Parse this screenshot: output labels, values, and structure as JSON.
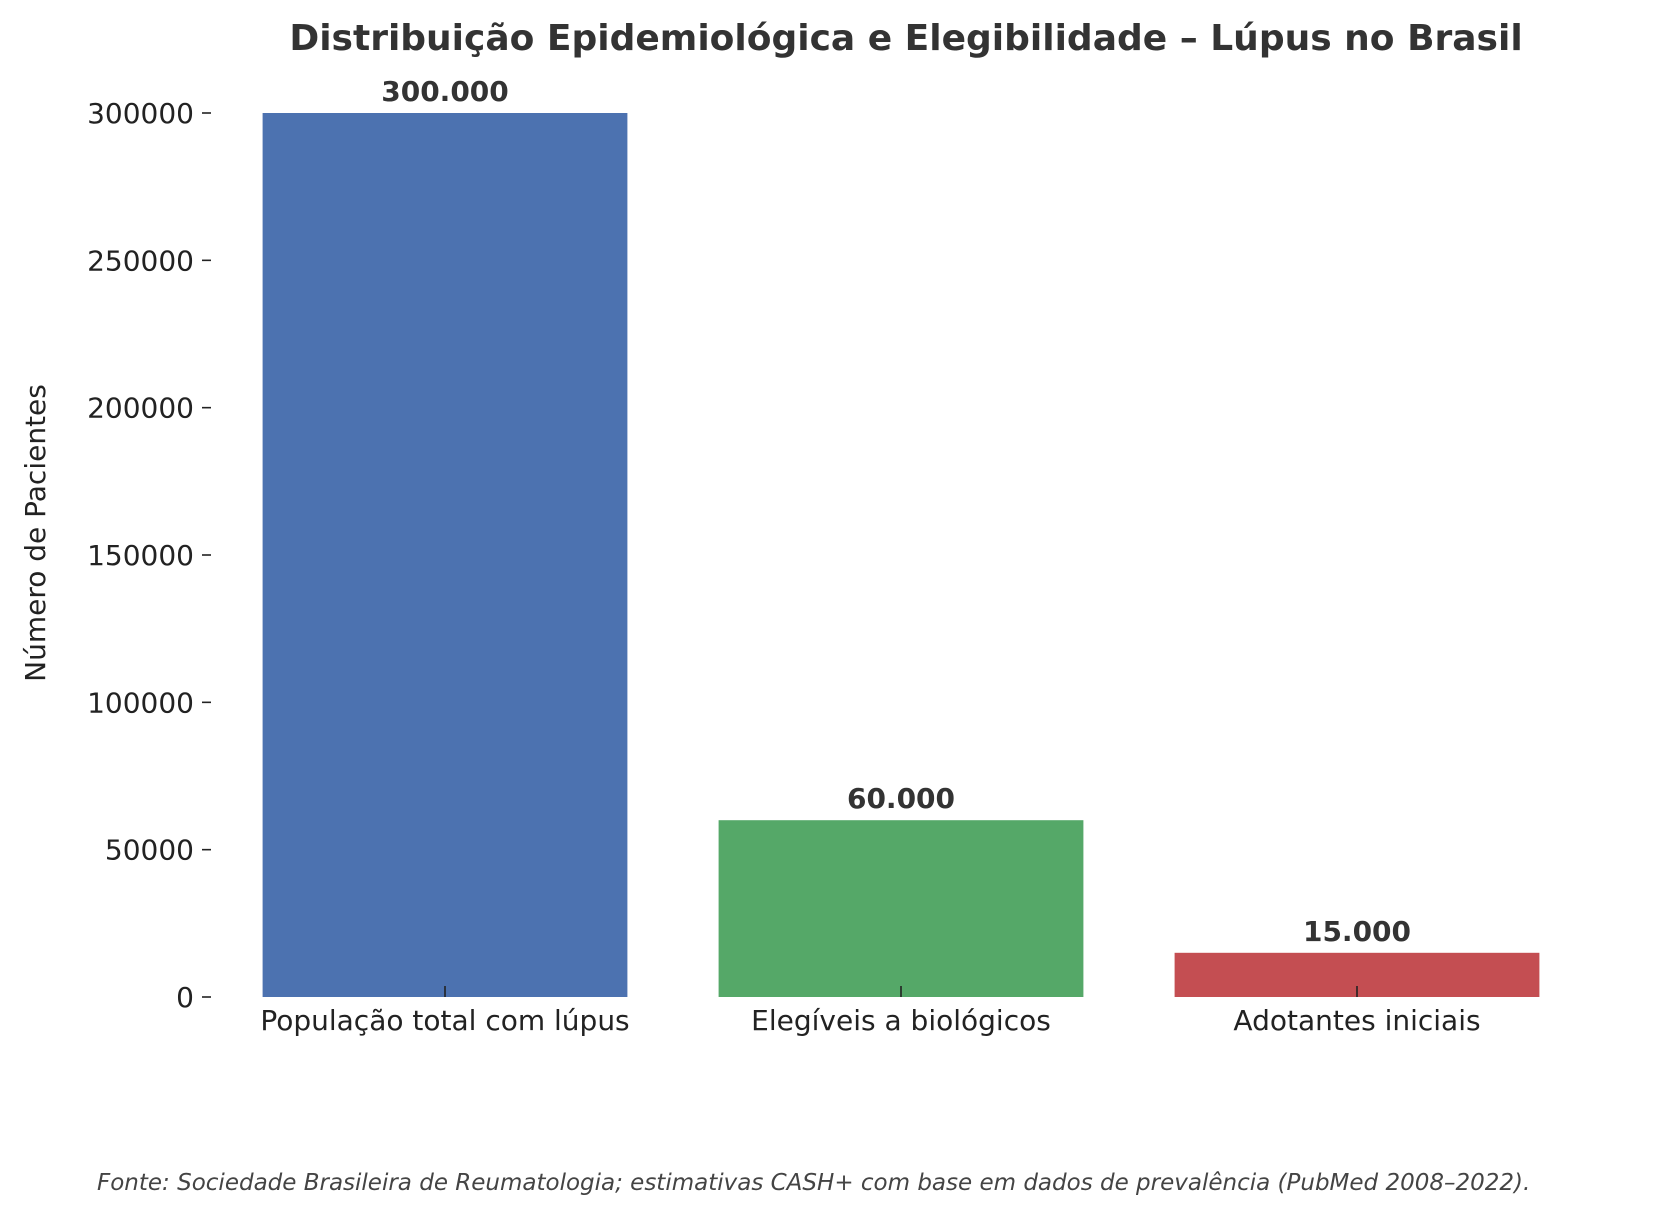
{
  "chart_data": {
    "type": "bar",
    "title": "Distribuição Epidemiológica e Elegibilidade – Lúpus no Brasil",
    "xlabel": "",
    "ylabel": "Número de Pacientes",
    "categories": [
      "População total com lúpus",
      "Elegíveis a biológicos",
      "Adotantes iniciais"
    ],
    "values": [
      300000,
      60000,
      15000
    ],
    "data_labels": [
      "300.000",
      "60.000",
      "15.000"
    ],
    "colors": [
      "#4c72b0",
      "#55a868",
      "#c44e52"
    ],
    "ylim": [
      0,
      300000
    ],
    "yticks": [
      0,
      50000,
      100000,
      150000,
      200000,
      250000,
      300000
    ],
    "ytick_labels": [
      "0",
      "50000",
      "100000",
      "150000",
      "200000",
      "250000",
      "300000"
    ],
    "grid": false,
    "source_note": "Fonte: Sociedade Brasileira de Reumatologia; estimativas CASH+ com base em dados de prevalência (PubMed 2008–2022)."
  }
}
